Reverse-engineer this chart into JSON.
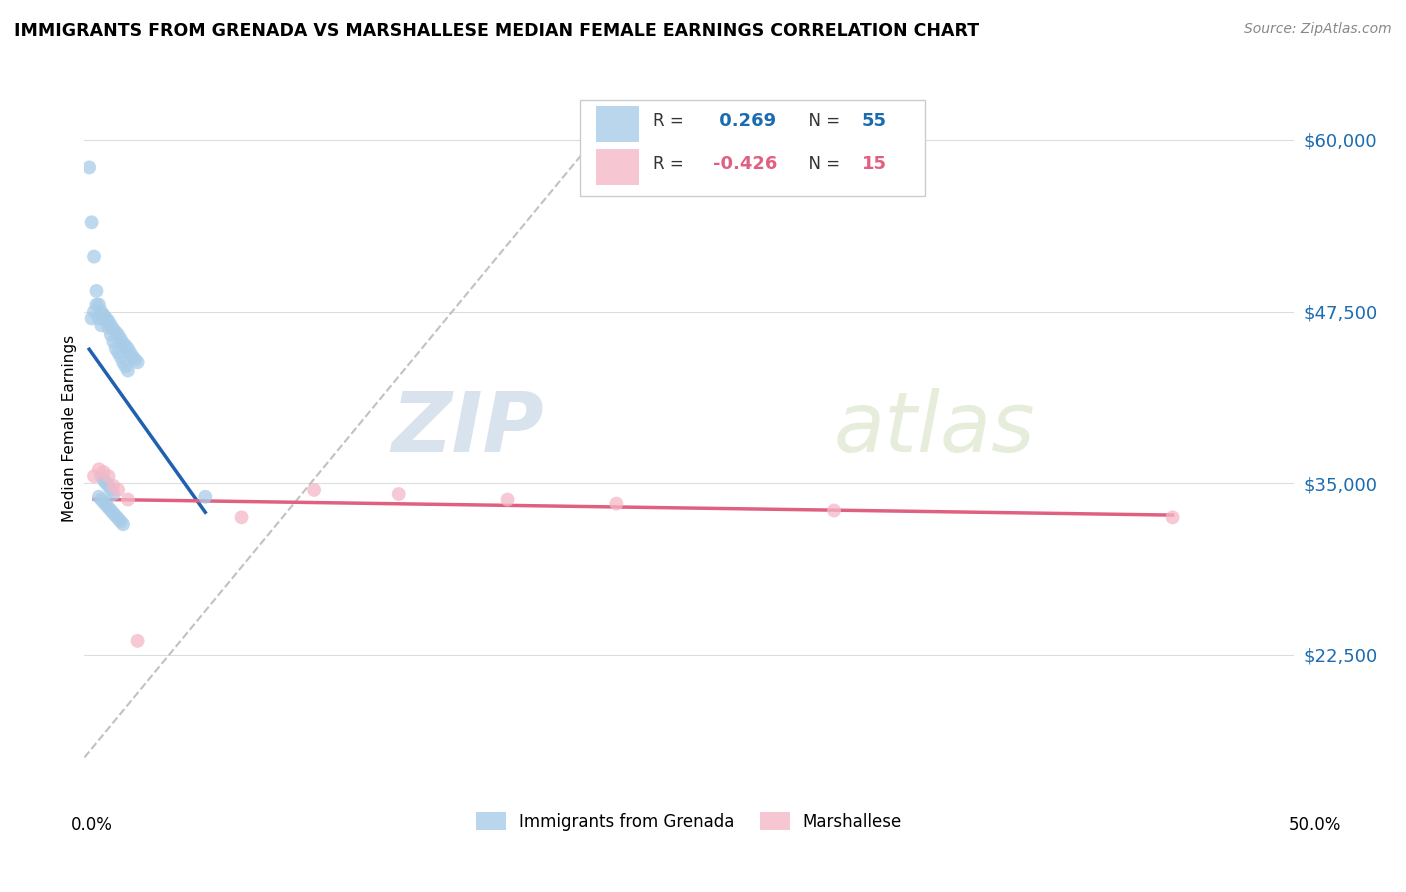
{
  "title": "IMMIGRANTS FROM GRENADA VS MARSHALLESE MEDIAN FEMALE EARNINGS CORRELATION CHART",
  "source": "Source: ZipAtlas.com",
  "ylabel": "Median Female Earnings",
  "y_ticks": [
    22500,
    35000,
    47500,
    60000
  ],
  "y_tick_labels": [
    "$22,500",
    "$35,000",
    "$47,500",
    "$60,000"
  ],
  "x_range": [
    0.0,
    0.5
  ],
  "y_range": [
    13000,
    65000
  ],
  "grenada_R": 0.269,
  "grenada_N": 55,
  "marshallese_R": -0.426,
  "marshallese_N": 15,
  "grenada_color": "#a8cce8",
  "marshallese_color": "#f4b8c8",
  "grenada_line_color": "#2060b0",
  "marshallese_line_color": "#e06080",
  "diagonal_color": "#bbbbbb",
  "watermark_zip": "ZIP",
  "watermark_atlas": "atlas",
  "grenada_x": [
    0.002,
    0.003,
    0.004,
    0.005,
    0.006,
    0.007,
    0.008,
    0.009,
    0.01,
    0.011,
    0.012,
    0.013,
    0.014,
    0.015,
    0.016,
    0.017,
    0.018,
    0.019,
    0.02,
    0.021,
    0.022,
    0.003,
    0.004,
    0.005,
    0.006,
    0.007,
    0.008,
    0.009,
    0.01,
    0.011,
    0.012,
    0.013,
    0.014,
    0.015,
    0.016,
    0.017,
    0.018,
    0.007,
    0.008,
    0.009,
    0.01,
    0.011,
    0.012,
    0.006,
    0.007,
    0.008,
    0.009,
    0.01,
    0.011,
    0.012,
    0.013,
    0.014,
    0.015,
    0.016,
    0.05
  ],
  "grenada_y": [
    58000,
    54000,
    51500,
    49000,
    48000,
    47500,
    47200,
    47000,
    46800,
    46500,
    46200,
    46000,
    45800,
    45500,
    45200,
    45000,
    44800,
    44500,
    44200,
    44000,
    43800,
    47000,
    47500,
    48000,
    47000,
    46500,
    47200,
    46800,
    46300,
    45800,
    45300,
    44800,
    44500,
    44200,
    43800,
    43500,
    43200,
    35500,
    35200,
    35000,
    34800,
    34500,
    34200,
    34000,
    33800,
    33600,
    33400,
    33200,
    33000,
    32800,
    32600,
    32400,
    32200,
    32000,
    34000
  ],
  "marshallese_x": [
    0.004,
    0.006,
    0.008,
    0.01,
    0.012,
    0.014,
    0.018,
    0.022,
    0.065,
    0.095,
    0.13,
    0.175,
    0.22,
    0.31,
    0.45
  ],
  "marshallese_y": [
    35500,
    36000,
    35800,
    35500,
    34800,
    34500,
    33800,
    23500,
    32500,
    34500,
    34200,
    33800,
    33500,
    33000,
    32500
  ]
}
